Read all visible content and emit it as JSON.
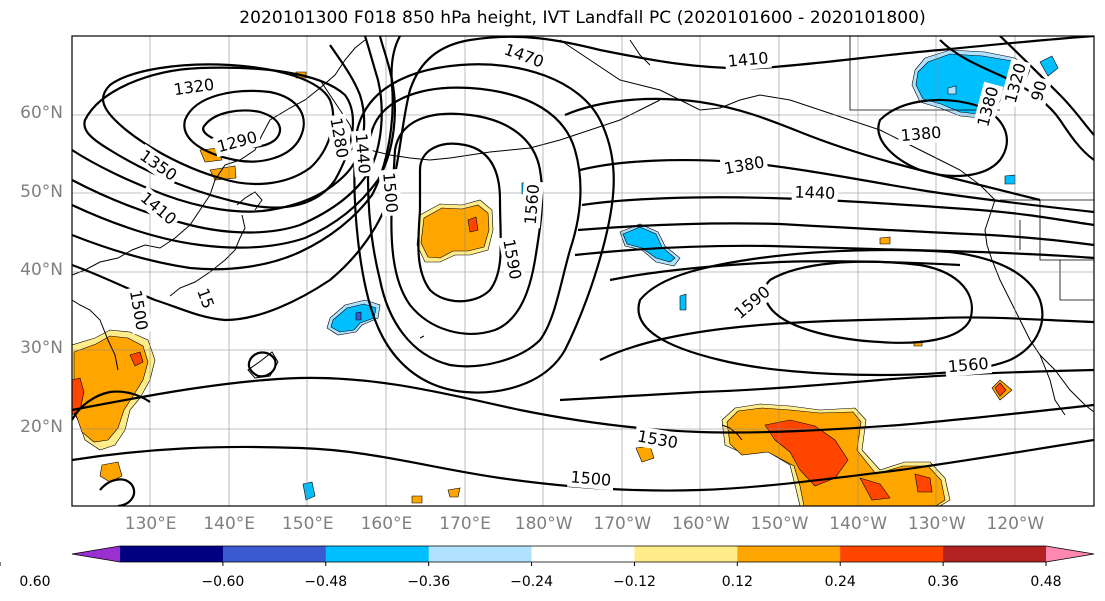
{
  "title": "2020101300 F018 850 hPa height, IVT Landfall PC (2020101600 - 2020101800)",
  "lat_labels": [
    {
      "text": "60°N",
      "lat": 60
    },
    {
      "text": "50°N",
      "lat": 50
    },
    {
      "text": "40°N",
      "lat": 40
    },
    {
      "text": "30°N",
      "lat": 30
    },
    {
      "text": "20°N",
      "lat": 20
    }
  ],
  "lon_labels": [
    {
      "text": "130°E",
      "lon": 130
    },
    {
      "text": "140°E",
      "lon": 140
    },
    {
      "text": "150°E",
      "lon": 150
    },
    {
      "text": "160°E",
      "lon": 160
    },
    {
      "text": "170°E",
      "lon": 170
    },
    {
      "text": "180°W",
      "lon": 180
    },
    {
      "text": "170°W",
      "lon": 190
    },
    {
      "text": "160°W",
      "lon": 200
    },
    {
      "text": "150°W",
      "lon": 210
    },
    {
      "text": "140°W",
      "lon": 220
    },
    {
      "text": "130°W",
      "lon": 230
    },
    {
      "text": "120°W",
      "lon": 240
    }
  ],
  "contour_labels": [
    {
      "text": "1320",
      "lon": 135.5,
      "lat": 63.5,
      "rot": -8
    },
    {
      "text": "1290",
      "lon": 141,
      "lat": 56.5,
      "rot": -15
    },
    {
      "text": "1350",
      "lon": 131,
      "lat": 53.5,
      "rot": 35
    },
    {
      "text": "1410",
      "lon": 131,
      "lat": 48,
      "rot": 40
    },
    {
      "text": "1500",
      "lon": 128.5,
      "lat": 35,
      "rot": 80
    },
    {
      "text": "15",
      "lon": 137,
      "lat": 36.5,
      "rot": 70
    },
    {
      "text": "1280",
      "lon": 154,
      "lat": 57,
      "rot": 80
    },
    {
      "text": "1440",
      "lon": 157,
      "lat": 55,
      "rot": 85
    },
    {
      "text": "1500",
      "lon": 160.5,
      "lat": 50,
      "rot": 85
    },
    {
      "text": "1470",
      "lon": 177.5,
      "lat": 67.5,
      "rot": 20
    },
    {
      "text": "1560",
      "lon": 178.5,
      "lat": 48.5,
      "rot": -85
    },
    {
      "text": "1590",
      "lon": 176,
      "lat": 41.5,
      "rot": 80
    },
    {
      "text": "1410",
      "lon": 206,
      "lat": 67,
      "rot": -5
    },
    {
      "text": "1380",
      "lon": 205.5,
      "lat": 53.5,
      "rot": -10
    },
    {
      "text": "1440",
      "lon": 214.5,
      "lat": 50,
      "rot": 2
    },
    {
      "text": "1380",
      "lon": 228,
      "lat": 57.5,
      "rot": -5
    },
    {
      "text": "1590",
      "lon": 206.5,
      "lat": 36,
      "rot": -40
    },
    {
      "text": "1560",
      "lon": 234,
      "lat": 28,
      "rot": -5
    },
    {
      "text": "1530",
      "lon": 194.5,
      "lat": 18.5,
      "rot": 10
    },
    {
      "text": "1500",
      "lon": 186,
      "lat": 13.5,
      "rot": 5
    },
    {
      "text": "1380",
      "lon": 236.5,
      "lat": 61,
      "rot": -75
    },
    {
      "text": "1320",
      "lon": 240,
      "lat": 64,
      "rot": -75
    },
    {
      "text": "90",
      "lon": 243,
      "lat": 63,
      "rot": -75
    }
  ],
  "colorbar": {
    "colors": [
      "#9b30d0",
      "#000080",
      "#3a5bcf",
      "#00bfff",
      "#b0e2ff",
      "#ffffff",
      "#ffec8b",
      "#ffa500",
      "#ff4500",
      "#b22222",
      "#ff88b0"
    ],
    "tick_labels": [
      "−0.60",
      "−0.48",
      "−0.36",
      "−0.24",
      "−0.12",
      "0.12",
      "0.24",
      "0.36",
      "0.48",
      "0.60"
    ]
  }
}
